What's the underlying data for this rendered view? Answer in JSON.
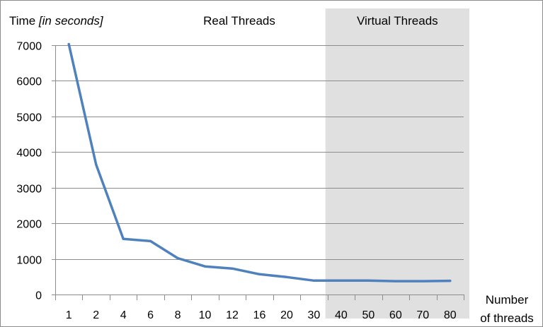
{
  "chart_data": {
    "type": "line",
    "title": "",
    "ylabel": "Time",
    "ylabel_unit": "[in seconds]",
    "xlabel": "Number of threads",
    "xlabel_lines": [
      "Number",
      "of threads"
    ],
    "categories": [
      "1",
      "2",
      "4",
      "6",
      "8",
      "10",
      "12",
      "16",
      "20",
      "30",
      "40",
      "50",
      "60",
      "70",
      "80"
    ],
    "series": [
      {
        "values": [
          7030,
          3650,
          1560,
          1500,
          1020,
          790,
          730,
          570,
          490,
          390,
          390,
          390,
          375,
          375,
          385
        ]
      }
    ],
    "ylim": [
      0,
      7000
    ],
    "yticks": [
      0,
      1000,
      2000,
      3000,
      4000,
      5000,
      6000,
      7000
    ],
    "grid": true,
    "regions": [
      {
        "label": "Real Threads",
        "from": "1",
        "to": "30",
        "shaded": false
      },
      {
        "label": "Virtual Threads",
        "from": "40",
        "to": "80",
        "shaded": true
      }
    ],
    "colors": {
      "line": "#4f81bd",
      "grid": "#8c8c8c",
      "shade": "#e0e0e0"
    }
  }
}
